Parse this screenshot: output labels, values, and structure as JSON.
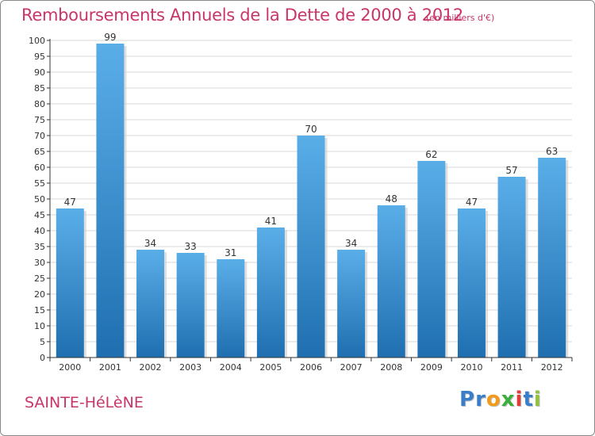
{
  "title": "Remboursements Annuels de la Dette de 2000 à 2012",
  "unit_note": "(en milliers d'€)",
  "place": "SAINTE-HéLèNE",
  "logo": {
    "text": "Proxiti",
    "letters": [
      "P",
      "r",
      "o",
      "x",
      "i",
      "t",
      "i"
    ],
    "colors": [
      "#3a7dc9",
      "#3a7dc9",
      "#f29a1a",
      "#3cae3c",
      "#e03c3c",
      "#3a7dc9",
      "#8fc33a"
    ]
  },
  "colors": {
    "accent": "#c8356a",
    "bar_top": "#5aaee8",
    "bar_bottom": "#1f6fb0",
    "grid": "#d9d9d9",
    "axis": "#333333"
  },
  "chart_data": {
    "type": "bar",
    "categories": [
      "2000",
      "2001",
      "2002",
      "2003",
      "2004",
      "2005",
      "2006",
      "2007",
      "2008",
      "2009",
      "2010",
      "2011",
      "2012"
    ],
    "values": [
      47,
      99,
      34,
      33,
      31,
      41,
      70,
      34,
      48,
      62,
      47,
      57,
      63
    ],
    "ylim": [
      0,
      100
    ],
    "yticks": [
      0,
      5,
      10,
      15,
      20,
      25,
      30,
      35,
      40,
      45,
      50,
      55,
      60,
      65,
      70,
      75,
      80,
      85,
      90,
      95,
      100
    ],
    "grid": true,
    "data_labels": true
  }
}
